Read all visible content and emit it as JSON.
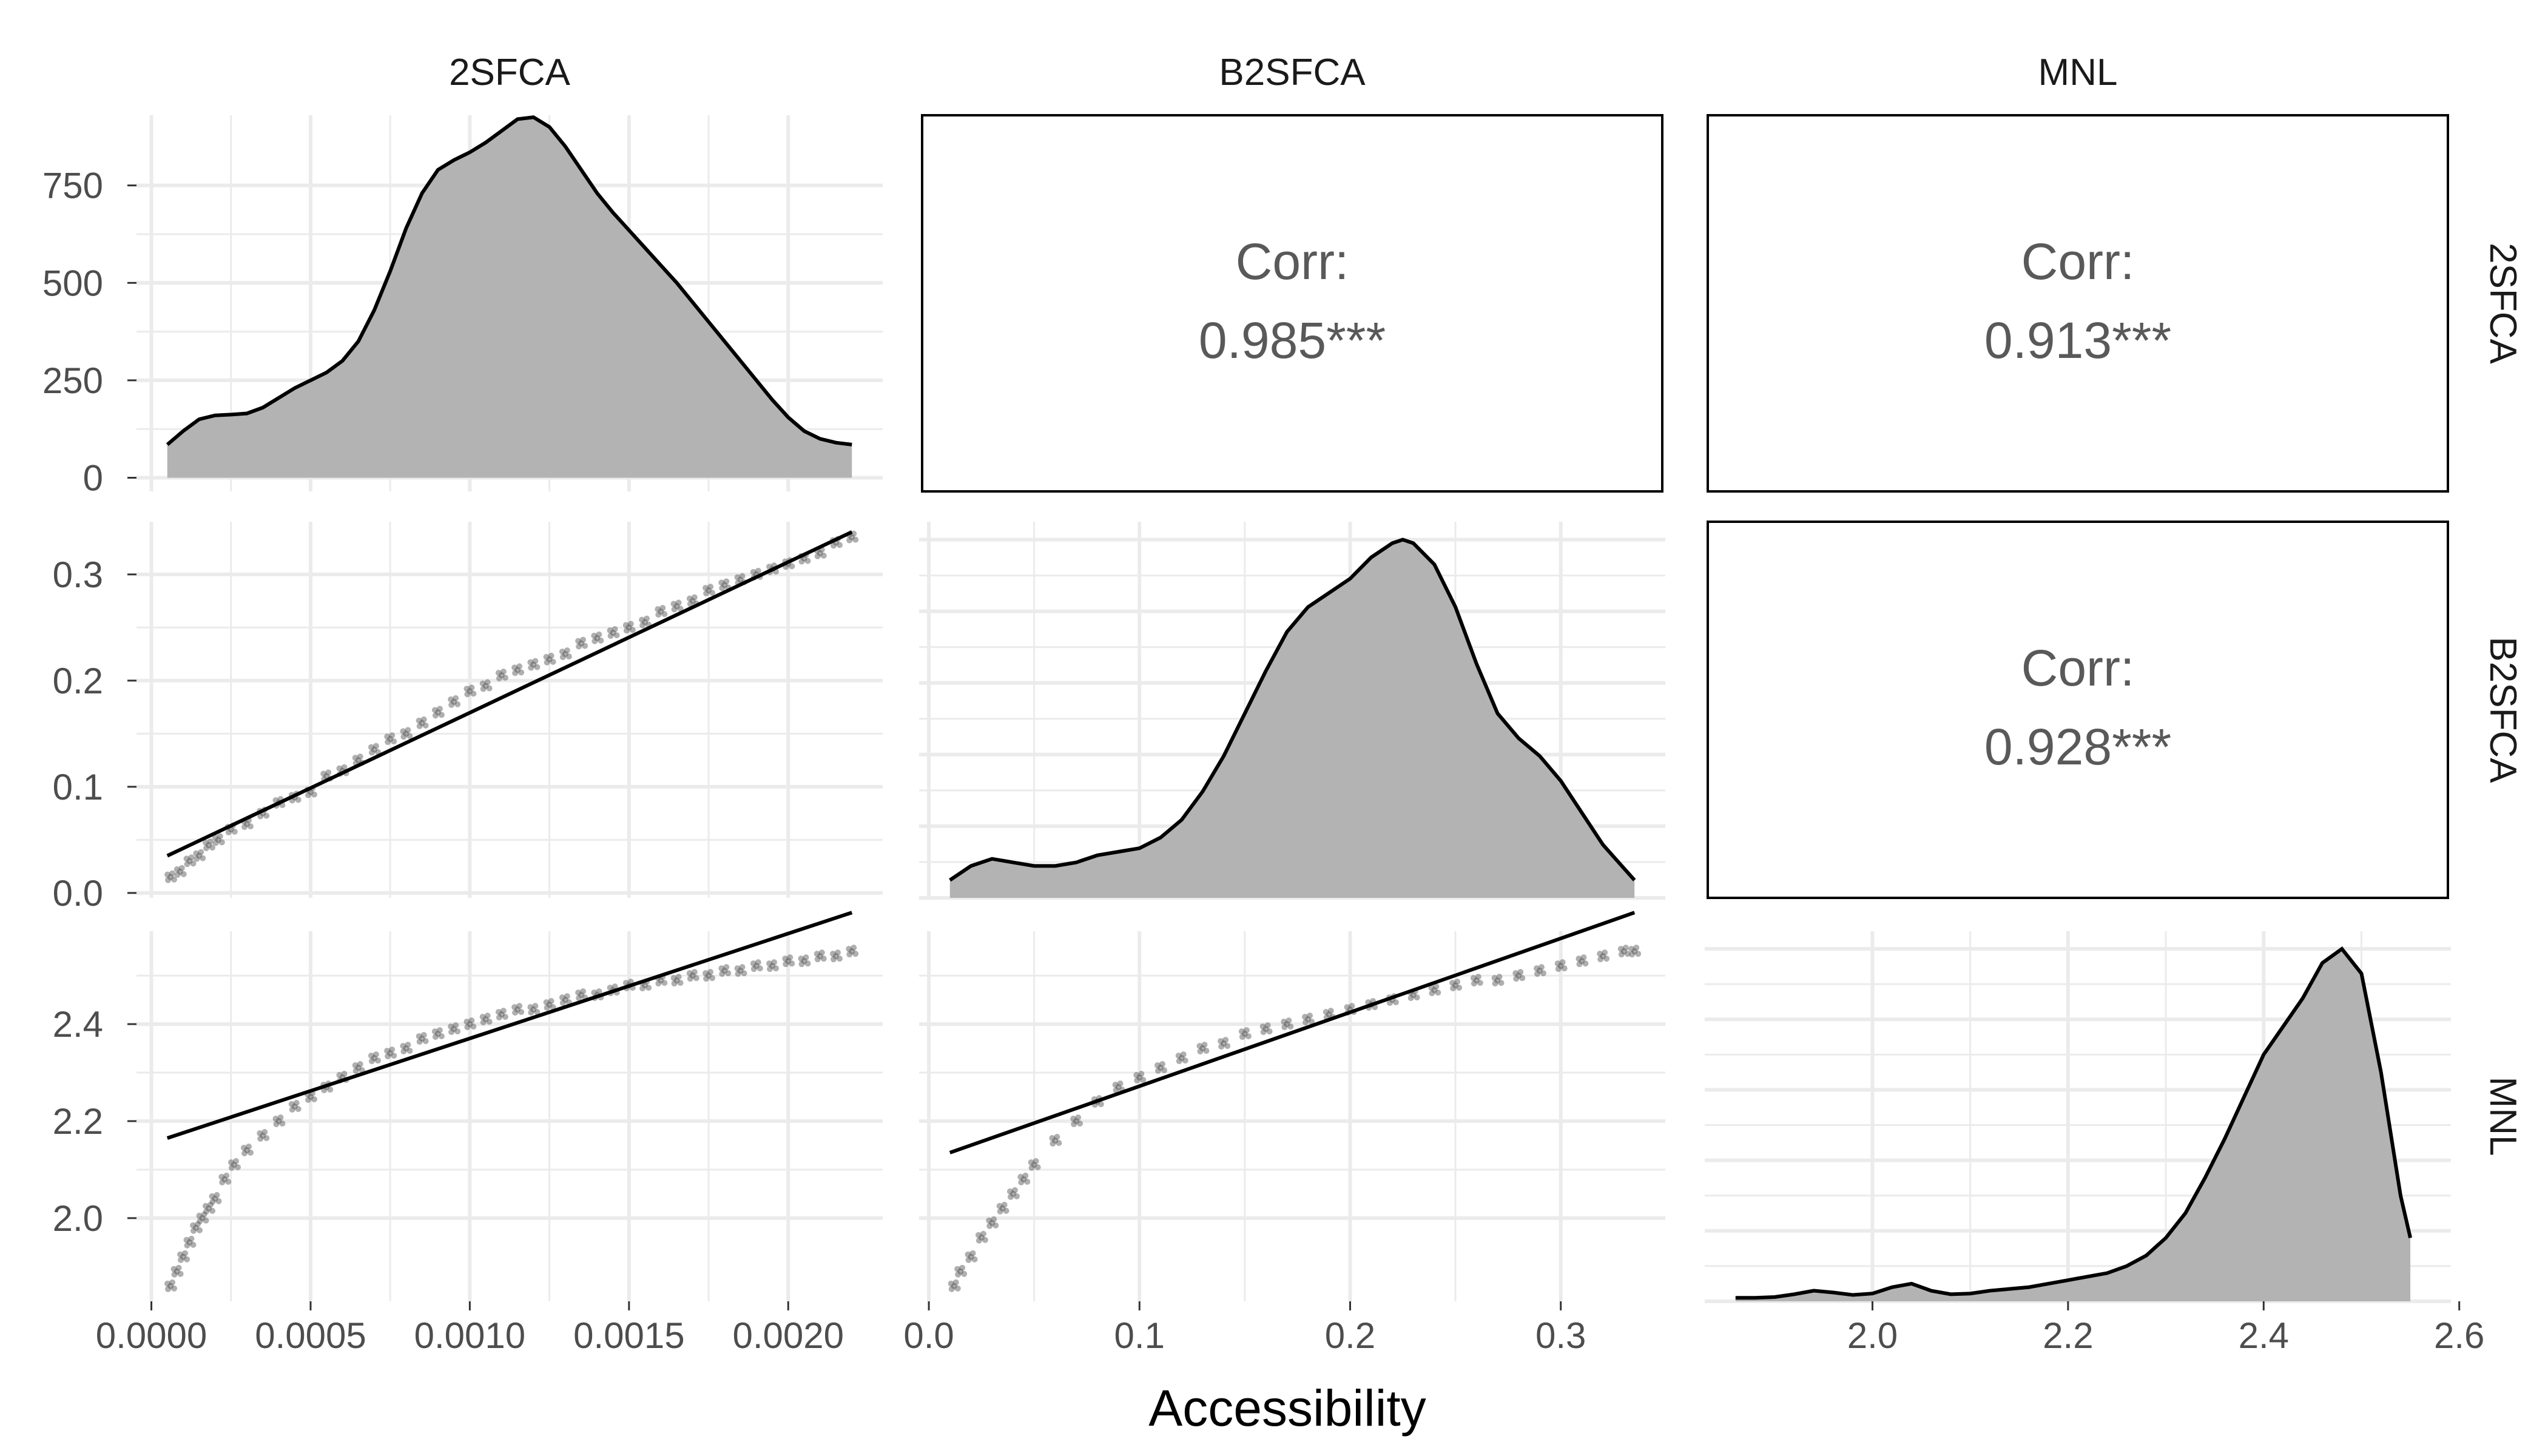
{
  "chart_data": {
    "type": "scatter",
    "title": "",
    "xlabel": "Accessibility",
    "ylabel": "",
    "variables": [
      "2SFCA",
      "B2SFCA",
      "MNL"
    ],
    "grid": true,
    "colors": {
      "fill": "#b3b3b3",
      "line": "#000000",
      "points": "#4d4d4d",
      "grid": "#ebebeb"
    },
    "axes": {
      "2SFCA": {
        "range": [
          5e-05,
          0.0022
        ],
        "ticks": [
          0.0,
          0.0005,
          0.001,
          0.0015,
          0.002
        ],
        "tick_labels": [
          "0.0000",
          "0.0005",
          "0.0010",
          "0.0015",
          "0.0020"
        ]
      },
      "B2SFCA": {
        "range": [
          0.01,
          0.335
        ],
        "ticks": [
          0.0,
          0.1,
          0.2,
          0.3
        ],
        "tick_labels": [
          "0.0",
          "0.1",
          "0.2",
          "0.3"
        ]
      },
      "MNL": {
        "range": [
          1.86,
          2.56
        ],
        "ticks": [
          2.0,
          2.2,
          2.4,
          2.6
        ],
        "tick_labels": [
          "2.0",
          "2.2",
          "2.4",
          "2.6"
        ]
      }
    },
    "density_axis": {
      "variable": "2SFCA",
      "ticks": [
        0,
        250,
        500,
        750
      ],
      "tick_labels": [
        "0",
        "250",
        "500",
        "750"
      ],
      "ylim": [
        0,
        930
      ]
    },
    "densities": {
      "2SFCA": {
        "x": [
          5e-05,
          0.0001,
          0.00015,
          0.0002,
          0.00025,
          0.0003,
          0.00035,
          0.0004,
          0.00045,
          0.0005,
          0.00055,
          0.0006,
          0.00065,
          0.0007,
          0.00075,
          0.0008,
          0.00085,
          0.0009,
          0.00095,
          0.001,
          0.00105,
          0.0011,
          0.00115,
          0.0012,
          0.00125,
          0.0013,
          0.00135,
          0.0014,
          0.00145,
          0.0015,
          0.00155,
          0.0016,
          0.00165,
          0.0017,
          0.00175,
          0.0018,
          0.00185,
          0.0019,
          0.00195,
          0.002,
          0.00205,
          0.0021,
          0.00215,
          0.0022
        ],
        "y": [
          85,
          120,
          150,
          160,
          162,
          165,
          180,
          205,
          230,
          250,
          270,
          300,
          350,
          430,
          530,
          640,
          730,
          790,
          815,
          835,
          860,
          890,
          920,
          925,
          900,
          850,
          790,
          730,
          680,
          635,
          590,
          545,
          500,
          450,
          400,
          350,
          300,
          250,
          200,
          155,
          120,
          100,
          90,
          85
        ]
      },
      "B2SFCA": {
        "x": [
          0.01,
          0.02,
          0.03,
          0.04,
          0.05,
          0.06,
          0.07,
          0.08,
          0.09,
          0.1,
          0.11,
          0.12,
          0.13,
          0.14,
          0.15,
          0.16,
          0.17,
          0.18,
          0.19,
          0.2,
          0.21,
          0.22,
          0.225,
          0.23,
          0.24,
          0.25,
          0.26,
          0.27,
          0.28,
          0.29,
          0.3,
          0.31,
          0.32,
          0.335
        ],
        "y": [
          0.05,
          0.09,
          0.11,
          0.1,
          0.09,
          0.09,
          0.1,
          0.12,
          0.13,
          0.14,
          0.17,
          0.22,
          0.3,
          0.4,
          0.52,
          0.64,
          0.75,
          0.82,
          0.86,
          0.9,
          0.96,
          1.0,
          1.01,
          1.0,
          0.94,
          0.82,
          0.66,
          0.52,
          0.45,
          0.4,
          0.33,
          0.24,
          0.15,
          0.05
        ]
      },
      "MNL": {
        "x": [
          1.86,
          1.88,
          1.9,
          1.92,
          1.94,
          1.96,
          1.98,
          2.0,
          2.02,
          2.04,
          2.06,
          2.08,
          2.1,
          2.12,
          2.14,
          2.16,
          2.18,
          2.2,
          2.22,
          2.24,
          2.26,
          2.28,
          2.3,
          2.32,
          2.34,
          2.36,
          2.38,
          2.4,
          2.42,
          2.44,
          2.46,
          2.48,
          2.5,
          2.52,
          2.54,
          2.55
        ],
        "y": [
          0.01,
          0.01,
          0.012,
          0.02,
          0.03,
          0.025,
          0.018,
          0.022,
          0.04,
          0.05,
          0.03,
          0.02,
          0.022,
          0.03,
          0.035,
          0.04,
          0.05,
          0.06,
          0.07,
          0.08,
          0.1,
          0.13,
          0.18,
          0.25,
          0.35,
          0.46,
          0.58,
          0.7,
          0.78,
          0.86,
          0.96,
          1.0,
          0.93,
          0.65,
          0.3,
          0.18
        ]
      }
    },
    "correlations": [
      {
        "row": "2SFCA",
        "col": "B2SFCA",
        "label": "Corr:",
        "value": "0.985***"
      },
      {
        "row": "2SFCA",
        "col": "MNL",
        "label": "Corr:",
        "value": "0.913***"
      },
      {
        "row": "B2SFCA",
        "col": "MNL",
        "label": "Corr:",
        "value": "0.928***"
      }
    ],
    "scatter": {
      "B2SFCA_vs_2SFCA": {
        "x": [
          6e-05,
          9e-05,
          0.00012,
          0.00015,
          0.00018,
          0.00021,
          0.00025,
          0.0003,
          0.00035,
          0.0004,
          0.00045,
          0.0005,
          0.00055,
          0.0006,
          0.00065,
          0.0007,
          0.00075,
          0.0008,
          0.00085,
          0.0009,
          0.00095,
          0.001,
          0.00105,
          0.0011,
          0.00115,
          0.0012,
          0.00125,
          0.0013,
          0.00135,
          0.0014,
          0.00145,
          0.0015,
          0.00155,
          0.0016,
          0.00165,
          0.0017,
          0.00175,
          0.0018,
          0.00185,
          0.0019,
          0.00195,
          0.002,
          0.00205,
          0.0021,
          0.00215,
          0.0022
        ],
        "y": [
          0.015,
          0.02,
          0.03,
          0.035,
          0.045,
          0.05,
          0.06,
          0.065,
          0.075,
          0.085,
          0.09,
          0.095,
          0.11,
          0.115,
          0.125,
          0.135,
          0.145,
          0.15,
          0.16,
          0.17,
          0.18,
          0.19,
          0.195,
          0.205,
          0.21,
          0.215,
          0.22,
          0.225,
          0.235,
          0.24,
          0.245,
          0.25,
          0.255,
          0.265,
          0.27,
          0.275,
          0.285,
          0.29,
          0.295,
          0.3,
          0.305,
          0.31,
          0.315,
          0.32,
          0.33,
          0.335
        ]
      },
      "MNL_vs_2SFCA": {
        "x": [
          6e-05,
          8e-05,
          0.0001,
          0.00012,
          0.00014,
          0.00016,
          0.00018,
          0.0002,
          0.00023,
          0.00026,
          0.0003,
          0.00035,
          0.0004,
          0.00045,
          0.0005,
          0.00055,
          0.0006,
          0.00065,
          0.0007,
          0.00075,
          0.0008,
          0.00085,
          0.0009,
          0.00095,
          0.001,
          0.00105,
          0.0011,
          0.00115,
          0.0012,
          0.00125,
          0.0013,
          0.00135,
          0.0014,
          0.00145,
          0.0015,
          0.00155,
          0.0016,
          0.00165,
          0.0017,
          0.00175,
          0.0018,
          0.00185,
          0.0019,
          0.00195,
          0.002,
          0.00205,
          0.0021,
          0.00215,
          0.0022
        ],
        "y": [
          1.86,
          1.89,
          1.92,
          1.95,
          1.98,
          2.0,
          2.02,
          2.04,
          2.08,
          2.11,
          2.14,
          2.17,
          2.2,
          2.23,
          2.25,
          2.27,
          2.29,
          2.31,
          2.33,
          2.34,
          2.35,
          2.37,
          2.38,
          2.39,
          2.4,
          2.41,
          2.42,
          2.43,
          2.43,
          2.44,
          2.45,
          2.46,
          2.46,
          2.47,
          2.48,
          2.48,
          2.49,
          2.49,
          2.5,
          2.5,
          2.51,
          2.51,
          2.52,
          2.52,
          2.53,
          2.53,
          2.54,
          2.54,
          2.55
        ]
      },
      "MNL_vs_B2SFCA": {
        "x": [
          0.012,
          0.015,
          0.02,
          0.025,
          0.03,
          0.035,
          0.04,
          0.045,
          0.05,
          0.06,
          0.07,
          0.08,
          0.09,
          0.1,
          0.11,
          0.12,
          0.13,
          0.14,
          0.15,
          0.16,
          0.17,
          0.18,
          0.19,
          0.2,
          0.21,
          0.22,
          0.23,
          0.24,
          0.25,
          0.26,
          0.27,
          0.28,
          0.29,
          0.3,
          0.31,
          0.32,
          0.33,
          0.335
        ],
        "y": [
          1.86,
          1.89,
          1.92,
          1.96,
          1.99,
          2.02,
          2.05,
          2.08,
          2.11,
          2.16,
          2.2,
          2.24,
          2.27,
          2.29,
          2.31,
          2.33,
          2.35,
          2.36,
          2.38,
          2.39,
          2.4,
          2.41,
          2.42,
          2.43,
          2.44,
          2.45,
          2.46,
          2.47,
          2.48,
          2.49,
          2.49,
          2.5,
          2.51,
          2.52,
          2.53,
          2.54,
          2.55,
          2.55
        ]
      }
    },
    "fit_lines": {
      "B2SFCA_vs_2SFCA": {
        "x": [
          5e-05,
          0.0022
        ],
        "y": [
          0.035,
          0.34
        ]
      },
      "MNL_vs_2SFCA": {
        "x": [
          5e-05,
          0.0022
        ],
        "y": [
          2.165,
          2.63
        ]
      },
      "MNL_vs_B2SFCA": {
        "x": [
          0.01,
          0.335
        ],
        "y": [
          2.135,
          2.63
        ]
      }
    }
  }
}
